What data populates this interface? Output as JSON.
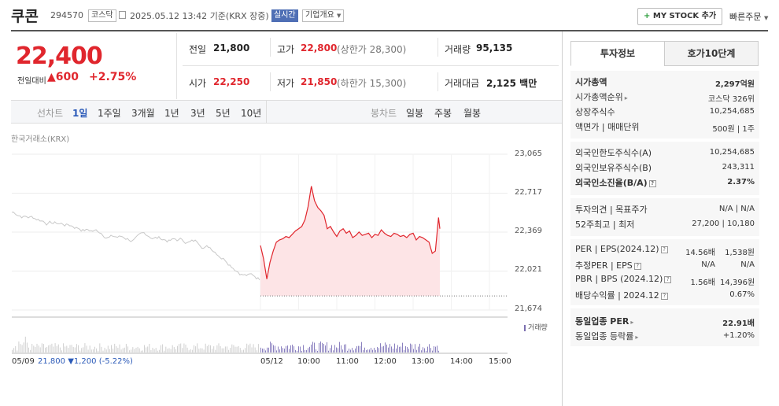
{
  "header": {
    "name": "쿠콘",
    "code": "294570",
    "market": "코스닥",
    "datetime": "2025.05.12 13:42",
    "basis": "기준(KRX 장중)",
    "realtime": "실시간",
    "corp_overview": "기업개요",
    "mystock_plus": "+",
    "mystock_label": "MY STOCK 추가",
    "quick_order": "빠른주문"
  },
  "quote": {
    "price": "22,400",
    "change_label": "전일대비",
    "change_arrow": "▲",
    "change": "600",
    "change_pct": "+2.75%",
    "prev_label": "전일",
    "prev": "21,800",
    "high_label": "고가",
    "high": "22,800",
    "upper_limit": "(상한가 28,300)",
    "volume_label": "거래량",
    "volume": "95,135",
    "open_label": "시가",
    "open": "22,250",
    "low_label": "저가",
    "low": "21,850",
    "lower_limit": "(하한가 15,300)",
    "value_label": "거래대금",
    "value": "2,125",
    "value_unit": "백만"
  },
  "periods": {
    "line_label": "선차트",
    "items": [
      "1일",
      "1주일",
      "3개월",
      "1년",
      "3년",
      "5년",
      "10년"
    ],
    "selected": "1일",
    "candle_label": "봉차트",
    "candle_items": [
      "일봉",
      "주봉",
      "월봉"
    ]
  },
  "chart_data": {
    "type": "line",
    "source": "한국거래소(KRX)",
    "yticks": [
      "23,065",
      "22,717",
      "22,369",
      "22,021",
      "21,674"
    ],
    "ylim": [
      21674,
      23065
    ],
    "xticks": [
      "05/12",
      "10:00",
      "11:00",
      "12:00",
      "13:00",
      "14:00",
      "15:00"
    ],
    "baseline": 21800,
    "series": [
      {
        "x": [
          "09:00",
          "09:05",
          "09:10",
          "09:15",
          "09:20",
          "09:25",
          "09:30",
          "09:35",
          "09:40",
          "09:45",
          "09:50",
          "09:55",
          "10:00",
          "10:05",
          "10:10",
          "10:15",
          "10:20",
          "10:25",
          "10:30",
          "10:35",
          "10:40",
          "10:45",
          "10:50",
          "10:55",
          "11:00",
          "11:05",
          "11:10",
          "11:15",
          "11:20",
          "11:25",
          "11:30",
          "11:35",
          "11:40",
          "11:45",
          "11:50",
          "11:55",
          "12:00",
          "12:05",
          "12:10",
          "12:15",
          "12:20",
          "12:25",
          "12:30",
          "12:35",
          "12:40",
          "12:45",
          "12:50",
          "12:55",
          "13:00",
          "13:05",
          "13:10",
          "13:15",
          "13:20",
          "13:25",
          "13:30",
          "13:35",
          "13:40",
          "13:42"
        ],
        "values": [
          22250,
          22130,
          21950,
          22100,
          22200,
          22280,
          22300,
          22310,
          22330,
          22320,
          22350,
          22380,
          22400,
          22420,
          22480,
          22600,
          22780,
          22650,
          22590,
          22560,
          22520,
          22400,
          22420,
          22370,
          22330,
          22380,
          22400,
          22360,
          22380,
          22320,
          22340,
          22370,
          22340,
          22350,
          22360,
          22320,
          22350,
          22340,
          22390,
          22360,
          22340,
          22330,
          22360,
          22350,
          22330,
          22340,
          22320,
          22350,
          22360,
          22300,
          22330,
          22320,
          22300,
          22280,
          22180,
          22200,
          22500,
          22400
        ]
      }
    ],
    "prev_day": {
      "date": "05/09",
      "close": "21,800",
      "change_arrow": "▼",
      "change": "1,200",
      "change_pct": "(-5.22%)"
    },
    "volume_legend": "거래량"
  },
  "side": {
    "tabs": [
      "투자정보",
      "호가10단계"
    ],
    "group1": [
      {
        "l": "시가총액",
        "v": "2,297억원",
        "bold": true
      },
      {
        "l": "시가총액순위",
        "v": "코스닥 326위",
        "arrow": true
      },
      {
        "l": "상장주식수",
        "v": "10,254,685"
      },
      {
        "l": "액면가 | 매매단위",
        "v": "500원 | 1주"
      }
    ],
    "group2": [
      {
        "l": "외국인한도주식수(A)",
        "v": "10,254,685"
      },
      {
        "l": "외국인보유주식수(B)",
        "v": "243,311"
      },
      {
        "l": "외국인소진율(B/A)",
        "v": "2.37%",
        "bold": true,
        "q": true
      }
    ],
    "group3": [
      {
        "l": "투자의견 | 목표주가",
        "v": "N/A | N/A"
      },
      {
        "l": "52주최고 | 최저",
        "v": "27,200 | 10,180"
      }
    ],
    "group4": [
      {
        "l": "PER | EPS(2024.12)",
        "m": "14.56배",
        "v": "1,538원",
        "q": true
      },
      {
        "l": "추정PER | EPS",
        "m": "N/A",
        "v": "N/A",
        "q": true
      },
      {
        "l": "PBR | BPS (2024.12)",
        "m": "1.56배",
        "v": "14,396원",
        "q": true
      },
      {
        "l": "배당수익률 | 2024.12",
        "v": "0.67%",
        "q": true
      }
    ],
    "group5": [
      {
        "l": "동일업종 PER",
        "v": "22.91배",
        "bold": true,
        "arrow": true
      },
      {
        "l": "동일업종 등락률",
        "v": "+1.20%",
        "red": true,
        "arrow": true
      }
    ]
  }
}
